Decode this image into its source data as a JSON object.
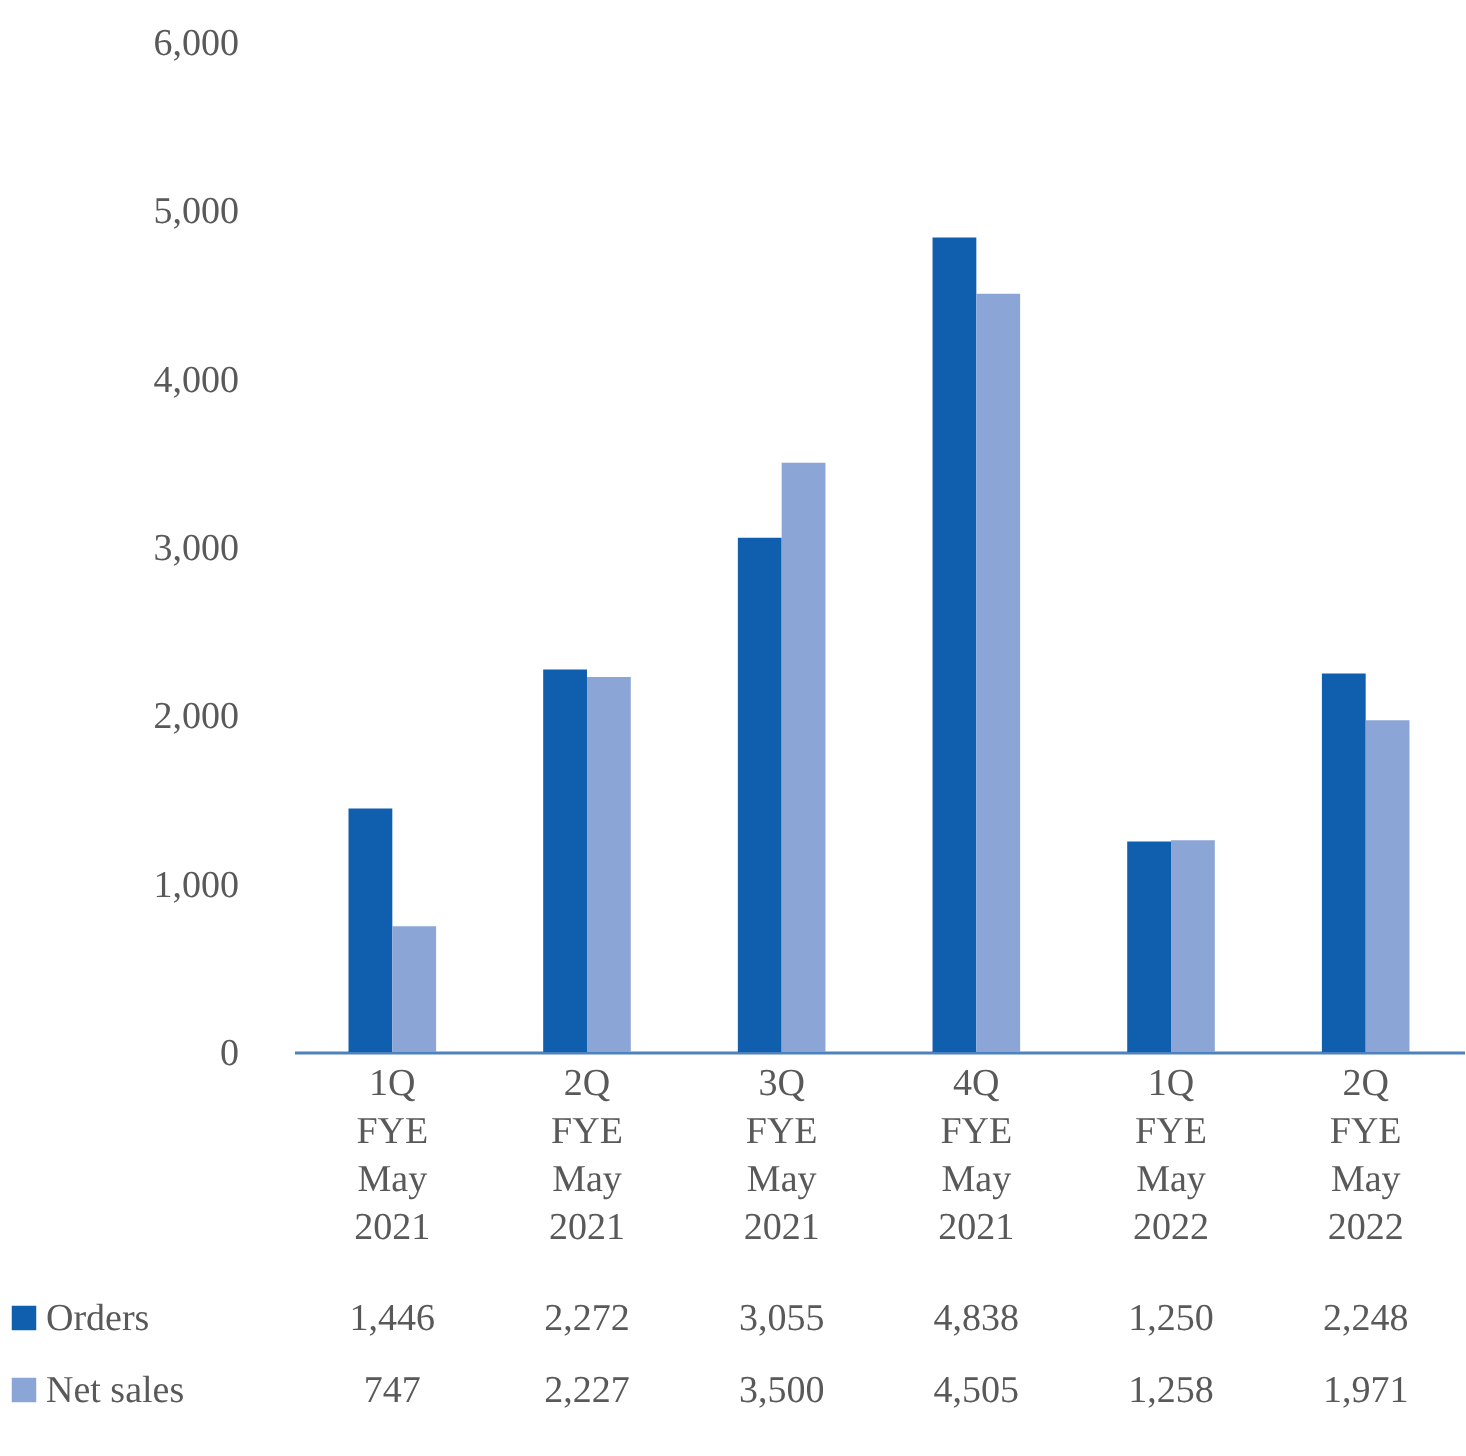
{
  "chart_data": {
    "type": "bar",
    "categories": [
      "1Q FYE May 2021",
      "2Q FYE May 2021",
      "3Q FYE May 2021",
      "4Q FYE May 2021",
      "1Q FYE May 2022",
      "2Q FYE May 2022"
    ],
    "series": [
      {
        "name": "Orders",
        "color": "#0f5fae",
        "values": [
          1446,
          2272,
          3055,
          4838,
          1250,
          2248
        ],
        "value_labels": [
          "1,446",
          "2,272",
          "3,055",
          "4,838",
          "1,250",
          "2,248"
        ]
      },
      {
        "name": "Net sales",
        "color": "#8ba5d7",
        "values": [
          747,
          2227,
          3500,
          4505,
          1258,
          1971
        ],
        "value_labels": [
          "747",
          "2,227",
          "3,500",
          "4,505",
          "1,258",
          "1,971"
        ]
      }
    ],
    "ylim": [
      0,
      6000
    ],
    "yticks": [
      0,
      {
        "value": 1000,
        "label": "1,000"
      },
      {
        "value": 2000,
        "label": "2,000"
      },
      {
        "value": 3000,
        "label": "3,000"
      },
      {
        "value": 4000,
        "label": "4,000"
      },
      {
        "value": 5000,
        "label": "5,000"
      },
      {
        "value": 6000,
        "label": "6,000"
      }
    ],
    "grid": false,
    "legend": "bottom left"
  }
}
